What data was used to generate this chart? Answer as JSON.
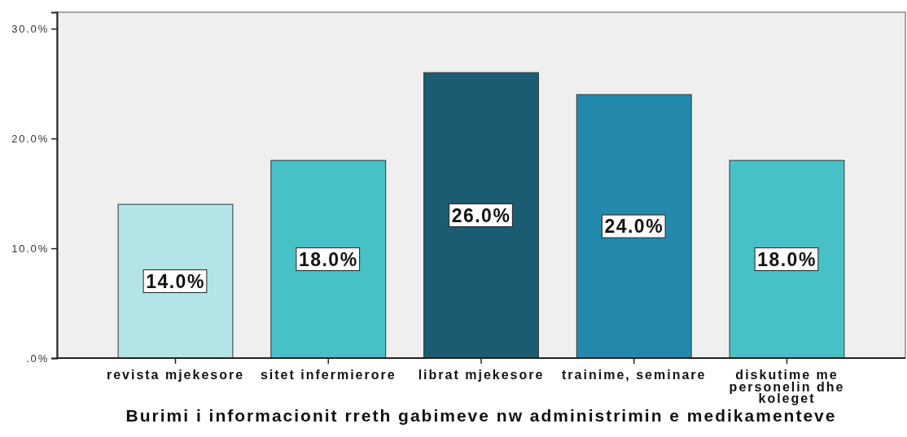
{
  "chart_data": {
    "type": "bar",
    "xlabel": "Burimi i informacionit rreth gabimeve nw administrimin e medikamenteve",
    "categories": [
      "revista mjekesore",
      "sitet infermierore",
      "librat mjekesore",
      "trainime, seminare",
      "diskutime me personelin dhe koleget"
    ],
    "values": [
      14,
      18,
      26,
      24,
      18
    ],
    "value_labels": [
      "14.0%",
      "18.0%",
      "26.0%",
      "24.0%",
      "18.0%"
    ],
    "colors": [
      "#b3e5e6",
      "#48c1c6",
      "#1b5c73",
      "#238aad",
      "#48c1c6"
    ],
    "ylim": [
      0,
      31.5
    ],
    "yticks": [
      {
        "value": 0,
        "label": ".0%"
      },
      {
        "value": 10,
        "label": "10.0%"
      },
      {
        "value": 20,
        "label": "20.0%"
      },
      {
        "value": 30,
        "label": "30.0%"
      }
    ]
  }
}
